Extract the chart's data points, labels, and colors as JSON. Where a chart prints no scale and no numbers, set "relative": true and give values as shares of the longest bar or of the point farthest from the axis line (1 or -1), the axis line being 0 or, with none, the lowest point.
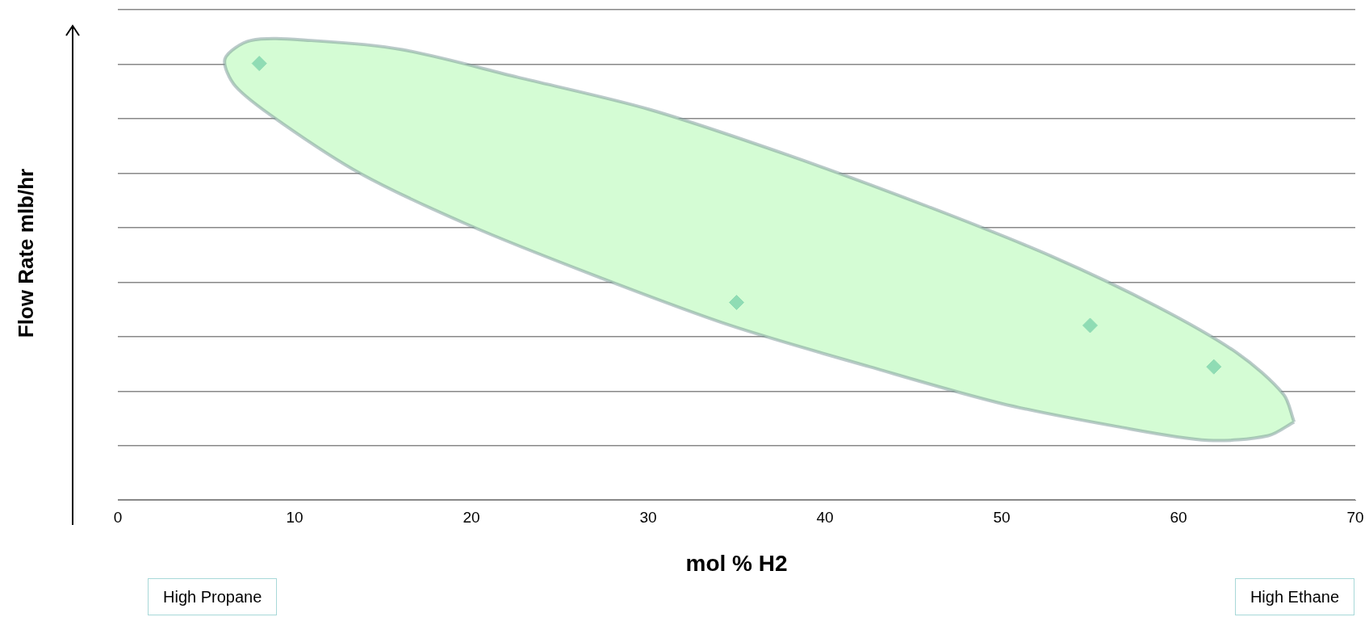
{
  "chart_data": {
    "type": "scatter",
    "xlabel": "mol % H2",
    "ylabel": "Flow Rate mlb/hr",
    "x": [
      8,
      35,
      55,
      62
    ],
    "series": [
      {
        "type": "area",
        "marker": "none",
        "color": "#d4fcd4",
        "x": [
          66.54,
          65.08,
          61.66,
          56.51,
          49.99,
          42.53,
          34.64,
          26.87,
          19.75,
          13.75,
          9.29,
          6.66,
          6.06,
          7.52,
          10.94,
          16.1,
          22.62,
          30.07,
          37.96,
          45.74,
          52.85,
          58.85,
          63.32,
          65.94,
          66.54
        ],
        "values": [
          0.17,
          0.14,
          0.13,
          0.16,
          0.21,
          0.29,
          0.38,
          0.49,
          0.6,
          0.71,
          0.82,
          0.9,
          0.96,
          1,
          1,
          0.98,
          0.92,
          0.85,
          0.75,
          0.64,
          0.53,
          0.42,
          0.32,
          0.23,
          0.17
        ]
      },
      {
        "color": "#8fdcb4",
        "values": [
          0.95,
          0.43,
          0.38,
          0.29
        ]
      }
    ],
    "relative": true,
    "xlim": [
      0,
      70
    ],
    "xticks": [
      0,
      10,
      20,
      30,
      40,
      50,
      60,
      70
    ],
    "grid": "y",
    "legend": false,
    "marker": "diamond",
    "annotations": [
      "High Propane",
      "High Ethane"
    ]
  }
}
